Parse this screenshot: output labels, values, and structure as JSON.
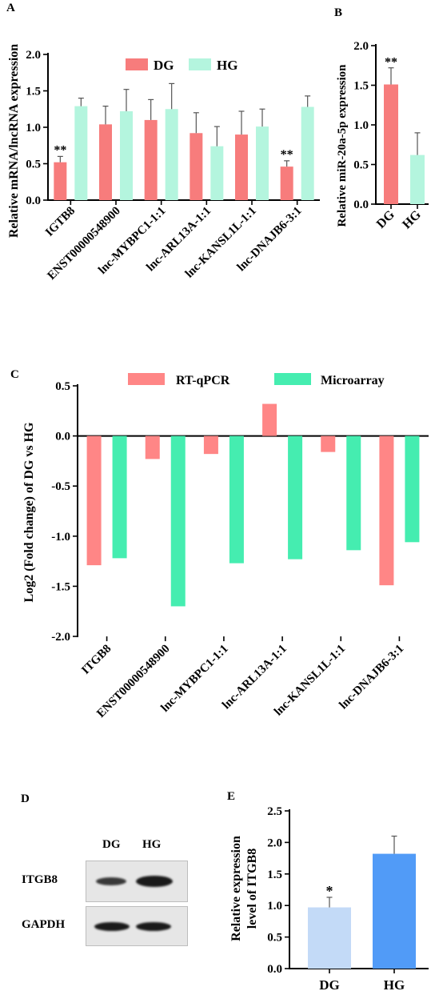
{
  "panels": {
    "a": "A",
    "b": "B",
    "c": "C",
    "d": "D",
    "e": "E"
  },
  "colors": {
    "dg": "#F77C7C",
    "hg": "#B4F5DE",
    "rtqpcr": "#FF8686",
    "microarray": "#45EDB0",
    "e_dg": "#C3DAF7",
    "e_hg": "#519BF7"
  },
  "chart_data": [
    {
      "id": "A",
      "type": "bar",
      "ylabel": "Relative mRNA/lncRNA expression",
      "ylim": [
        0,
        2.0
      ],
      "yticks": [
        "0.0",
        "0.5",
        "1.0",
        "1.5",
        "2.0"
      ],
      "categories": [
        "IGTB8",
        "ENST00000548900",
        "lnc-MYBPC1-1:1",
        "lnc-ARL13A-1:1",
        "lnc-KANSL1L-1:1",
        "lnc-DNAJB6-3:1"
      ],
      "series": [
        {
          "name": "DG",
          "values": [
            0.52,
            1.04,
            1.1,
            0.92,
            0.9,
            0.46
          ],
          "errors": [
            0.08,
            0.25,
            0.28,
            0.28,
            0.32,
            0.08
          ]
        },
        {
          "name": "HG",
          "values": [
            1.29,
            1.22,
            1.25,
            0.74,
            1.01,
            1.28
          ],
          "errors": [
            0.11,
            0.3,
            0.35,
            0.27,
            0.24,
            0.15
          ]
        }
      ],
      "annotations": [
        {
          "category": 0,
          "text": "**"
        },
        {
          "category": 5,
          "text": "**"
        }
      ],
      "legend": "top"
    },
    {
      "id": "B",
      "type": "bar",
      "ylabel": "Relative miR-20a-5p expression",
      "ylim": [
        0,
        2.0
      ],
      "yticks": [
        "0.0",
        "0.5",
        "1.0",
        "1.5",
        "2.0"
      ],
      "categories": [
        "DG",
        "HG"
      ],
      "values": [
        1.51,
        0.62
      ],
      "errors": [
        0.21,
        0.28
      ],
      "annotations": [
        {
          "category": 0,
          "text": "**"
        }
      ]
    },
    {
      "id": "C",
      "type": "bar",
      "ylabel": "Log2 (Fold change) of DG vs HG",
      "ylim": [
        -2.0,
        0.5
      ],
      "yticks": [
        "0.5",
        "0.0",
        "-0.5",
        "-1.0",
        "-1.5",
        "-2.0"
      ],
      "categories": [
        "ITGB8",
        "ENST00000548900",
        "lnc-MYBPC1-1:1",
        "lnc-ARL13A-1:1",
        "lnc-KANSL1L-1:1",
        "lnc-DNAJB6-3:1"
      ],
      "series": [
        {
          "name": "RT-qPCR",
          "values": [
            -1.29,
            -0.23,
            -0.18,
            0.32,
            -0.16,
            -1.49
          ]
        },
        {
          "name": "Microarray",
          "values": [
            -1.22,
            -1.7,
            -1.27,
            -1.23,
            -1.14,
            -1.06
          ]
        }
      ],
      "legend": "top"
    },
    {
      "id": "E",
      "type": "bar",
      "ylabel": [
        "Relative expression",
        "level of ITGB8"
      ],
      "ylim": [
        0,
        2.5
      ],
      "yticks": [
        "0.0",
        "0.5",
        "1.0",
        "1.5",
        "2.0",
        "2.5"
      ],
      "categories": [
        "DG",
        "HG"
      ],
      "values": [
        0.97,
        1.82
      ],
      "errors": [
        0.16,
        0.28
      ],
      "annotations": [
        {
          "category": 0,
          "text": "*"
        }
      ]
    }
  ],
  "blot": {
    "columns": [
      "DG",
      "HG"
    ],
    "rows": [
      "ITGB8",
      "GAPDH"
    ]
  }
}
